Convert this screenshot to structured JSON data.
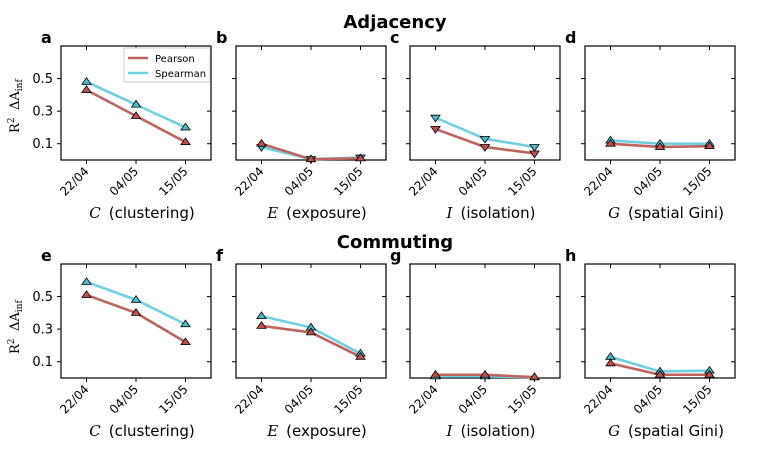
{
  "figure": {
    "row_titles": [
      "Adjacency",
      "Commuting"
    ],
    "ylabel_r2": "R",
    "ylabel_r2_sup": "2",
    "ylabel_delta": "ΔA",
    "ylabel_delta_sub": "inf",
    "legend": [
      "Pearson",
      "Spearman"
    ],
    "colors": {
      "pearson": "#c0635f",
      "spearman": "#72cfe0",
      "pearson_marker": "#c0504d",
      "spearman_marker": "#4bbccc"
    }
  },
  "chart_data": [
    {
      "type": "line",
      "letter": "a",
      "title": "Adjacency",
      "xlabel_symbol": "C",
      "xlabel_text": "(clustering)",
      "categories": [
        "22/04",
        "04/05",
        "15/05"
      ],
      "ylim": [
        0,
        0.7
      ],
      "yticks": [
        "0.5",
        "0.3",
        "0.1"
      ],
      "series": [
        {
          "name": "Pearson",
          "values": [
            0.43,
            0.27,
            0.11
          ],
          "marker": [
            "up",
            "up",
            "up"
          ]
        },
        {
          "name": "Spearman",
          "values": [
            0.48,
            0.34,
            0.2
          ],
          "marker": [
            "up",
            "up",
            "up"
          ]
        }
      ]
    },
    {
      "type": "line",
      "letter": "b",
      "title": "Adjacency",
      "xlabel_symbol": "E",
      "xlabel_text": "(exposure)",
      "categories": [
        "22/04",
        "04/05",
        "15/05"
      ],
      "ylim": [
        0,
        0.7
      ],
      "yticks": [
        "",
        "",
        ""
      ],
      "series": [
        {
          "name": "Pearson",
          "values": [
            0.1,
            0.005,
            0.01
          ],
          "marker": [
            "up",
            "up",
            "up"
          ]
        },
        {
          "name": "Spearman",
          "values": [
            0.08,
            0.005,
            0.015
          ],
          "marker": [
            "down",
            "down",
            "down"
          ]
        }
      ]
    },
    {
      "type": "line",
      "letter": "c",
      "title": "Adjacency",
      "xlabel_symbol": "I",
      "xlabel_text": "(isolation)",
      "categories": [
        "22/04",
        "04/05",
        "15/05"
      ],
      "ylim": [
        0,
        0.7
      ],
      "yticks": [
        "",
        "",
        ""
      ],
      "series": [
        {
          "name": "Pearson",
          "values": [
            0.19,
            0.08,
            0.04
          ],
          "marker": [
            "down",
            "down",
            "down"
          ]
        },
        {
          "name": "Spearman",
          "values": [
            0.26,
            0.13,
            0.08
          ],
          "marker": [
            "down",
            "down",
            "down"
          ]
        }
      ]
    },
    {
      "type": "line",
      "letter": "d",
      "title": "Adjacency",
      "xlabel_symbol": "G",
      "xlabel_text": "(spatial Gini)",
      "categories": [
        "22/04",
        "04/05",
        "15/05"
      ],
      "ylim": [
        0,
        0.7
      ],
      "yticks": [
        "",
        "",
        ""
      ],
      "series": [
        {
          "name": "Pearson",
          "values": [
            0.1,
            0.08,
            0.085
          ],
          "marker": [
            "up",
            "up",
            "up"
          ]
        },
        {
          "name": "Spearman",
          "values": [
            0.12,
            0.1,
            0.1
          ],
          "marker": [
            "up",
            "up",
            "up"
          ]
        }
      ]
    },
    {
      "type": "line",
      "letter": "e",
      "title": "Commuting",
      "xlabel_symbol": "C",
      "xlabel_text": "(clustering)",
      "categories": [
        "22/04",
        "04/05",
        "15/05"
      ],
      "ylim": [
        0,
        0.7
      ],
      "yticks": [
        "0.5",
        "0.3",
        "0.1"
      ],
      "series": [
        {
          "name": "Pearson",
          "values": [
            0.51,
            0.4,
            0.22
          ],
          "marker": [
            "up",
            "up",
            "up"
          ]
        },
        {
          "name": "Spearman",
          "values": [
            0.59,
            0.48,
            0.33
          ],
          "marker": [
            "up",
            "up",
            "up"
          ]
        }
      ]
    },
    {
      "type": "line",
      "letter": "f",
      "title": "Commuting",
      "xlabel_symbol": "E",
      "xlabel_text": "(exposure)",
      "categories": [
        "22/04",
        "04/05",
        "15/05"
      ],
      "ylim": [
        0,
        0.7
      ],
      "yticks": [
        "",
        "",
        ""
      ],
      "series": [
        {
          "name": "Pearson",
          "values": [
            0.32,
            0.28,
            0.13
          ],
          "marker": [
            "up",
            "up",
            "up"
          ]
        },
        {
          "name": "Spearman",
          "values": [
            0.38,
            0.31,
            0.15
          ],
          "marker": [
            "up",
            "up",
            "up"
          ]
        }
      ]
    },
    {
      "type": "line",
      "letter": "g",
      "title": "Commuting",
      "xlabel_symbol": "I",
      "xlabel_text": "(isolation)",
      "categories": [
        "22/04",
        "04/05",
        "15/05"
      ],
      "ylim": [
        0,
        0.7
      ],
      "yticks": [
        "",
        "",
        ""
      ],
      "series": [
        {
          "name": "Pearson",
          "values": [
            0.02,
            0.02,
            0.005
          ],
          "marker": [
            "up",
            "up",
            "up"
          ]
        },
        {
          "name": "Spearman",
          "values": [
            0.01,
            0.01,
            0.005
          ],
          "marker": [
            "up",
            "up",
            "up"
          ]
        }
      ]
    },
    {
      "type": "line",
      "letter": "h",
      "title": "Commuting",
      "xlabel_symbol": "G",
      "xlabel_text": "(spatial Gini)",
      "categories": [
        "22/04",
        "04/05",
        "15/05"
      ],
      "ylim": [
        0,
        0.7
      ],
      "yticks": [
        "",
        "",
        ""
      ],
      "series": [
        {
          "name": "Pearson",
          "values": [
            0.09,
            0.02,
            0.02
          ],
          "marker": [
            "up",
            "up",
            "up"
          ]
        },
        {
          "name": "Spearman",
          "values": [
            0.13,
            0.04,
            0.045
          ],
          "marker": [
            "up",
            "up",
            "up"
          ]
        }
      ]
    }
  ]
}
